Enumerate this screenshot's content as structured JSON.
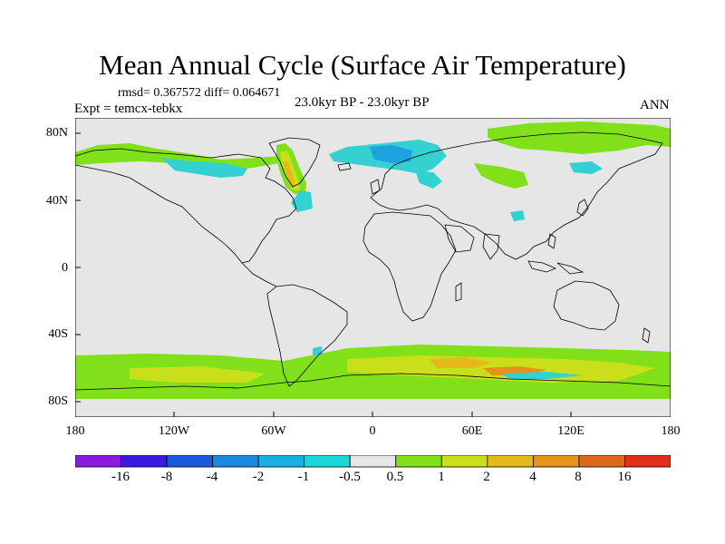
{
  "title": "Mean Annual Cycle (Surface Air Temperature)",
  "stats_text": "rmsd= 0.367572 diff= 0.064671",
  "experiment_text": "Expt = temcx-tebkx",
  "period_text": "23.0kyr BP - 23.0kyr BP",
  "season_text": "ANN",
  "lat_ticks": [
    "80N",
    "40N",
    "0",
    "40S",
    "80S"
  ],
  "lon_ticks": [
    "180",
    "120W",
    "60W",
    "0",
    "60E",
    "120E",
    "180"
  ],
  "colors": {
    "land_ocean_bg": "#e6e6e6",
    "coast": "#000000",
    "cyan_light": "#33d1d1",
    "blue_light": "#1fa3e0",
    "green": "#80e01a",
    "yellow_green": "#c8df1a",
    "gold": "#e6b81a",
    "orange": "#e8901a"
  },
  "colorbar": {
    "labels": [
      "-16",
      "-8",
      "-4",
      "-2",
      "-1",
      "-0.5",
      "0.5",
      "1",
      "2",
      "4",
      "8",
      "16"
    ],
    "colors": [
      "#8b1ae0",
      "#3a1ae0",
      "#1a5ae0",
      "#1a8ae0",
      "#1ab0e0",
      "#1ad8d8",
      "#e6e6e6",
      "#80e01a",
      "#c8df1a",
      "#e6b81a",
      "#e6941a",
      "#e0681a",
      "#e0301a"
    ]
  }
}
